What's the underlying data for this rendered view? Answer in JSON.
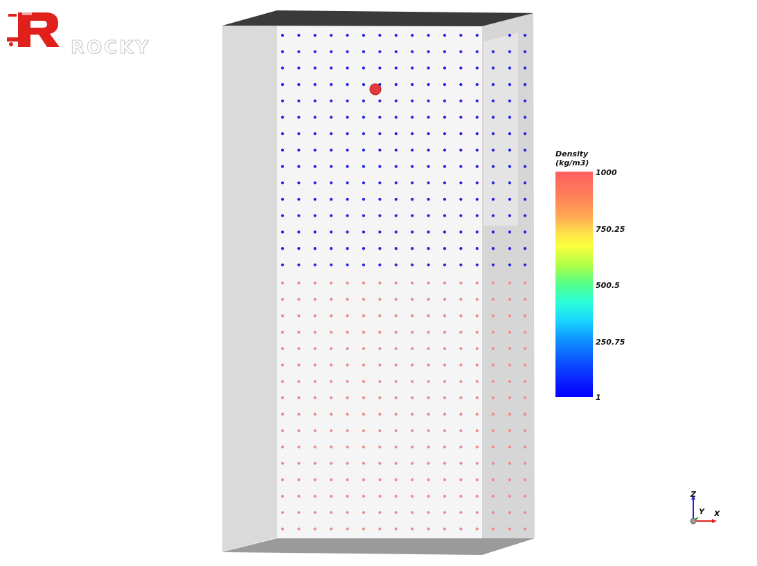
{
  "logo": {
    "text": "ROCKY",
    "letter": "R",
    "color": "#e0201b"
  },
  "scene": {
    "upper_particle_color": "#2020e8",
    "lower_particle_color": "#f08a8a",
    "highlight_particle_color": "#e03a3a"
  },
  "legend": {
    "title": "Density\n(kg/m3)",
    "ticks": [
      {
        "label": "1000",
        "value": 1000
      },
      {
        "label": "750.25",
        "value": 750.25
      },
      {
        "label": "500.5",
        "value": 500.5
      },
      {
        "label": "250.75",
        "value": 250.75
      },
      {
        "label": "1",
        "value": 1
      }
    ],
    "min": 1,
    "max": 1000,
    "colormap": [
      "#0000ff",
      "#18d5ff",
      "#52ff8c",
      "#faff3c",
      "#ff5e5e"
    ]
  },
  "axes": {
    "z": "Z",
    "y": "Y",
    "x": "X",
    "x_color": "#e02020",
    "z_color": "#2020e0",
    "y_color": "#20a020"
  }
}
